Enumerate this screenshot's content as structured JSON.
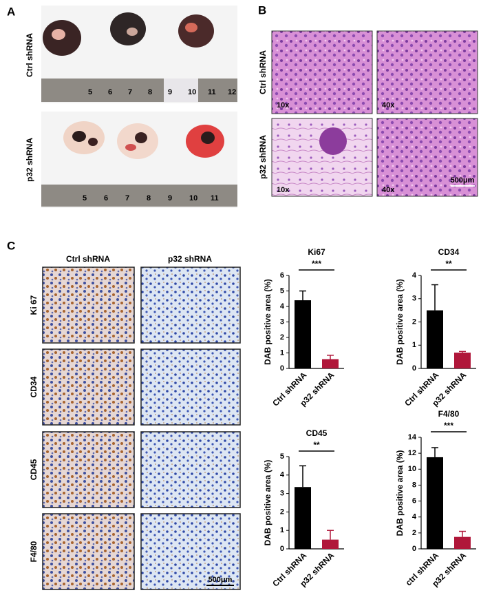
{
  "panels": {
    "a": {
      "label": "A",
      "rows": [
        "Ctrl shRNA",
        "p32 shRNA"
      ],
      "ruler_top": [
        "5",
        "6",
        "7",
        "8",
        "9",
        "10",
        "11",
        "12"
      ],
      "ruler_bottom": [
        "5",
        "6",
        "7",
        "8",
        "9",
        "10",
        "11"
      ]
    },
    "b": {
      "label": "B",
      "rows": [
        "Ctrl shRNA",
        "p32 shRNA"
      ],
      "magnifications": [
        "10x",
        "40x",
        "10x",
        "40x"
      ],
      "scale_bar": "500μm"
    },
    "c": {
      "label": "C",
      "columns": [
        "Ctrl shRNA",
        "p32 shRNA"
      ],
      "rows": [
        "Ki 67",
        "CD34",
        "CD45",
        "F4/80"
      ],
      "scale_bar": "500μm"
    }
  },
  "chart_data": [
    {
      "type": "bar",
      "title": "Ki67",
      "categories": [
        "Ctrl shRNA",
        "p32 shRNA"
      ],
      "values": [
        4.4,
        0.6
      ],
      "errors": [
        0.6,
        0.25
      ],
      "colors": [
        "#000000",
        "#b0173a"
      ],
      "ylim": [
        0,
        6
      ],
      "yticks": [
        0,
        1,
        2,
        3,
        4,
        5,
        6
      ],
      "ylabel": "DAB positive area (%)",
      "significance": "***"
    },
    {
      "type": "bar",
      "title": "CD34",
      "categories": [
        "Ctrl shRNA",
        "p32 shRNA"
      ],
      "values": [
        2.5,
        0.68
      ],
      "errors": [
        1.1,
        0.05
      ],
      "colors": [
        "#000000",
        "#b0173a"
      ],
      "ylim": [
        0,
        4
      ],
      "yticks": [
        0,
        1,
        2,
        3,
        4
      ],
      "ylabel": "DAB positive area (%)",
      "significance": "**"
    },
    {
      "type": "bar",
      "title": "CD45",
      "categories": [
        "Ctrl shRNA",
        "p32 shRNA"
      ],
      "values": [
        3.35,
        0.5
      ],
      "errors": [
        1.15,
        0.5
      ],
      "colors": [
        "#000000",
        "#b0173a"
      ],
      "ylim": [
        0,
        5
      ],
      "yticks": [
        0,
        1,
        2,
        3,
        4,
        5
      ],
      "ylabel": "DAB positive area (%)",
      "significance": "**"
    },
    {
      "type": "bar",
      "title": "F4/80",
      "categories": [
        "ctrl shRNA",
        "p32 shRNA"
      ],
      "values": [
        11.5,
        1.5
      ],
      "errors": [
        1.2,
        0.7
      ],
      "colors": [
        "#000000",
        "#b0173a"
      ],
      "ylim": [
        0,
        14
      ],
      "yticks": [
        0,
        2,
        4,
        6,
        8,
        10,
        12,
        14
      ],
      "ylabel": "DAB positive area (%)",
      "significance": "***"
    }
  ]
}
